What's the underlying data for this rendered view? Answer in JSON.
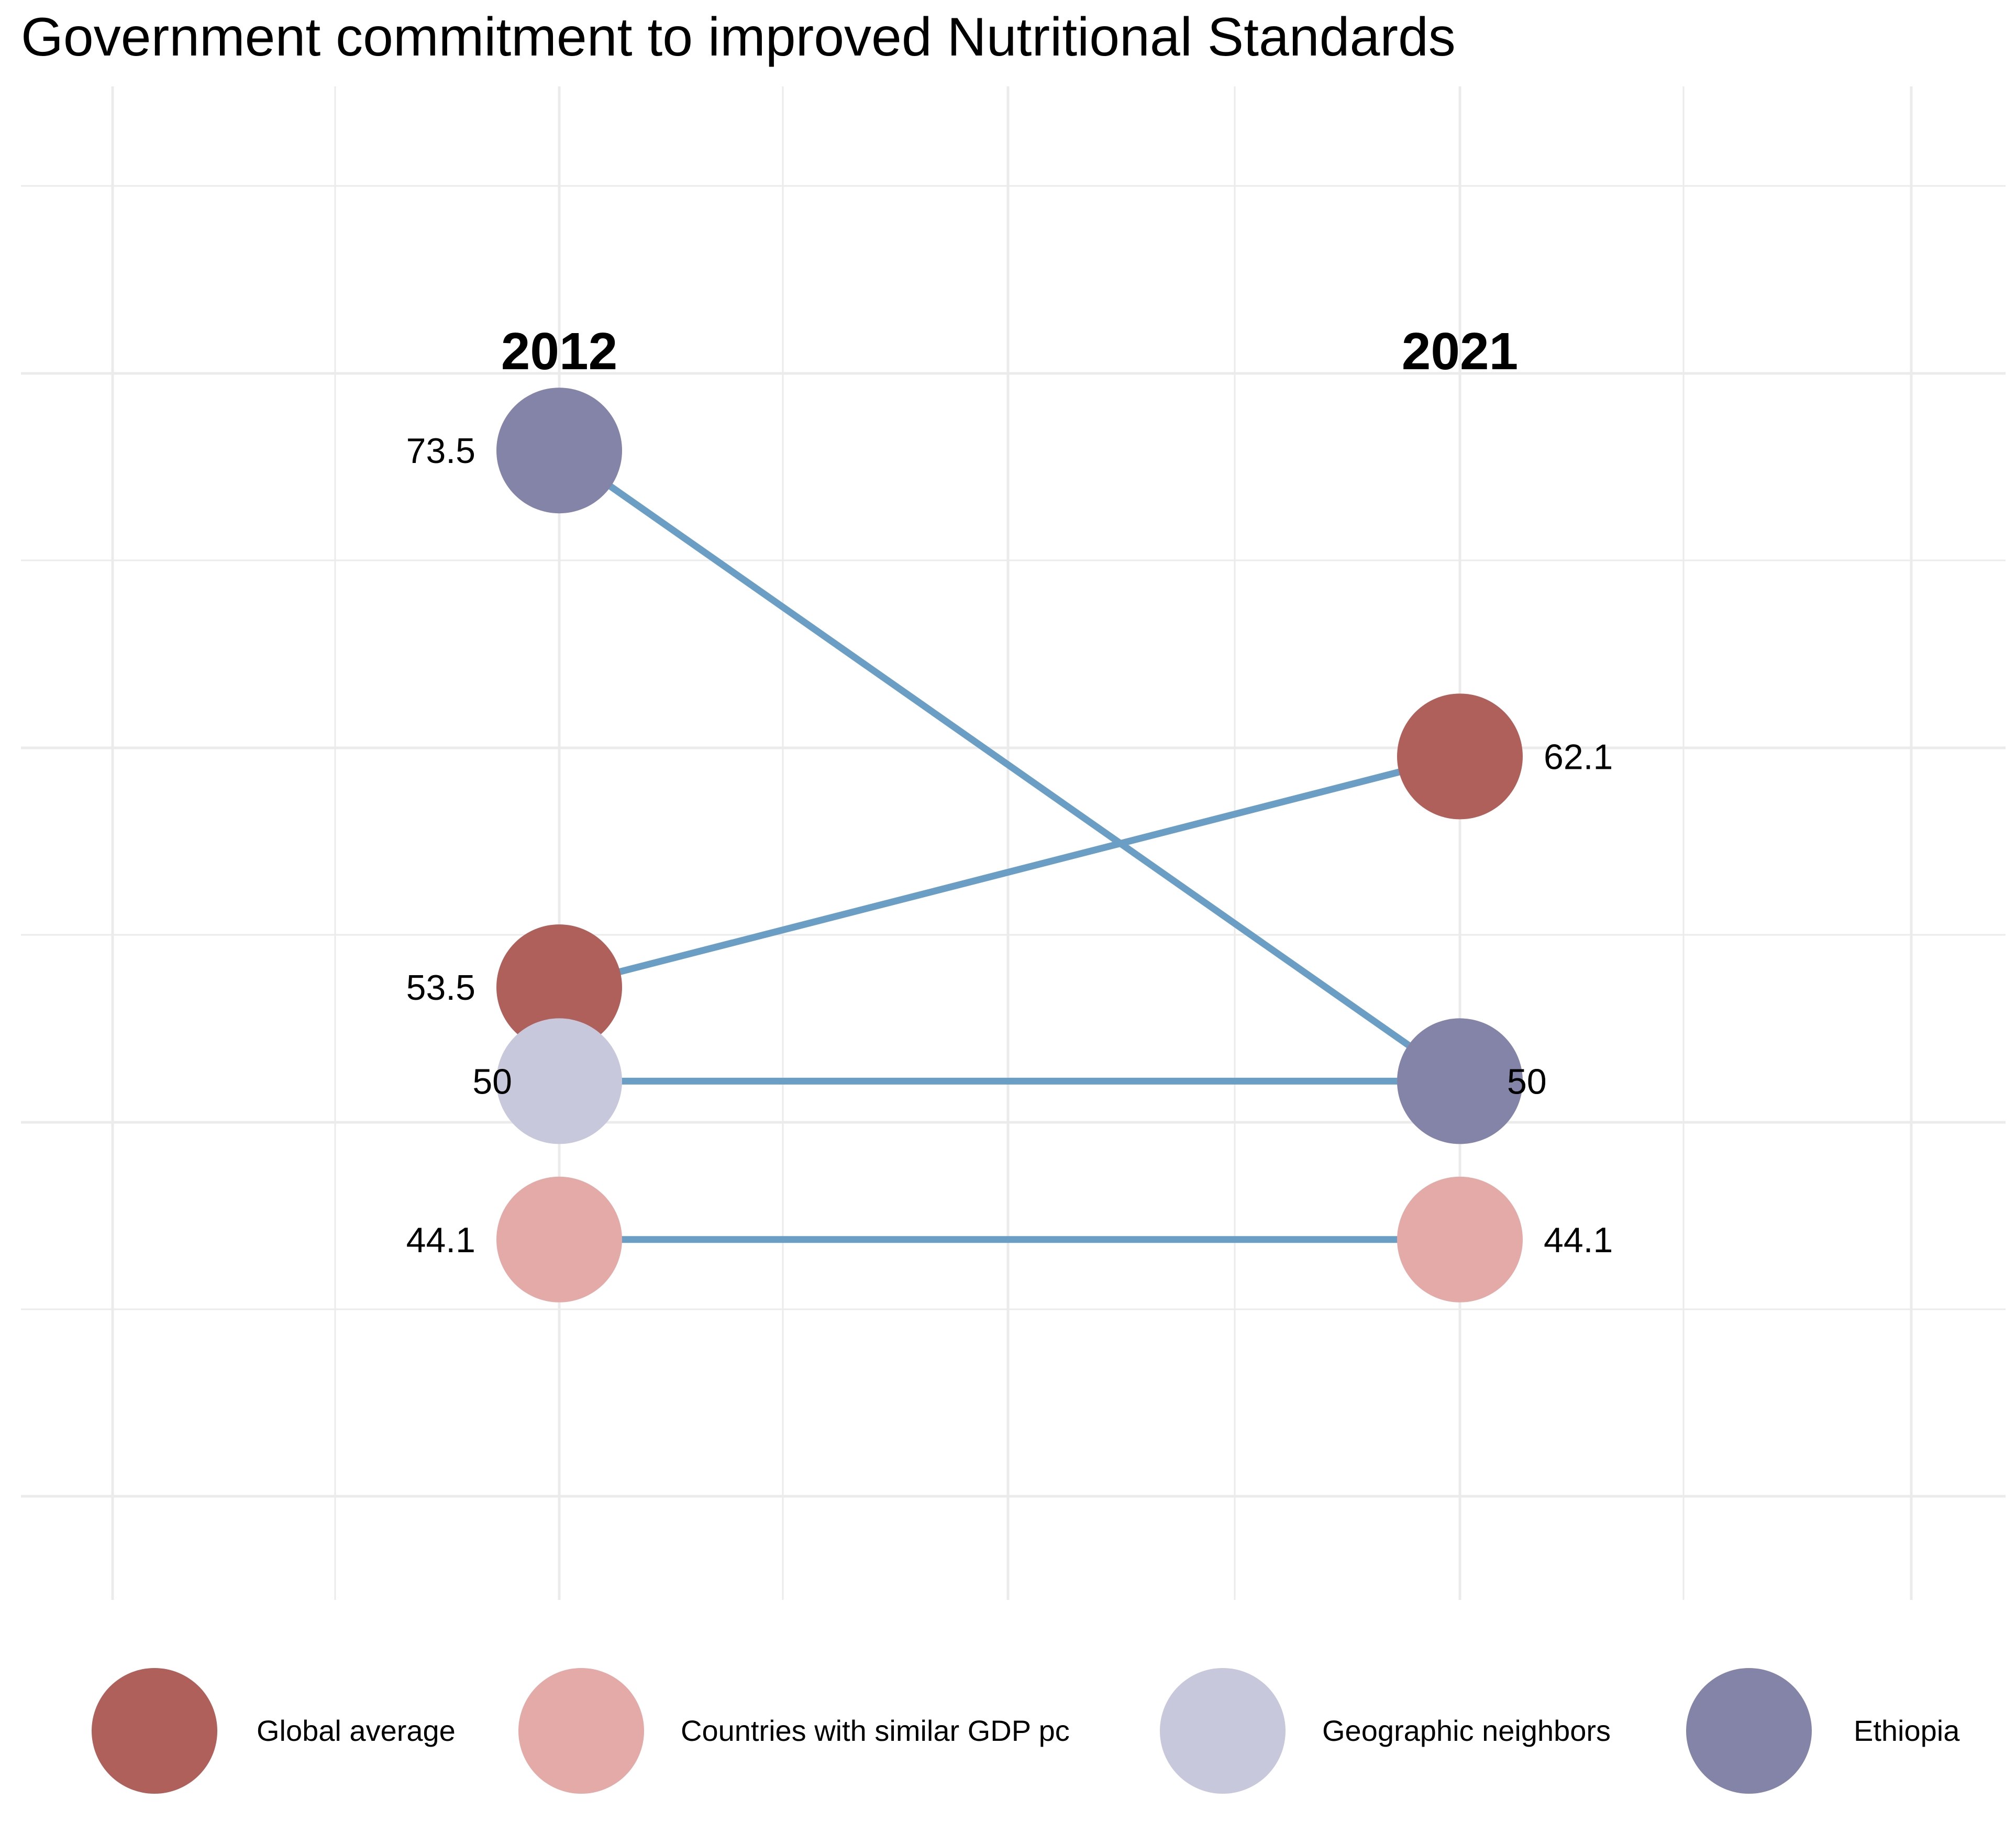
{
  "chart_data": {
    "type": "slope",
    "title": "Government commitment to improved Nutritional Standards",
    "categories": [
      "2012",
      "2021"
    ],
    "series": [
      {
        "name": "Global average",
        "values": [
          53.5,
          62.1
        ],
        "labels": [
          "53.5",
          "62.1"
        ],
        "color": "#b0605a"
      },
      {
        "name": "Countries with similar GDP pc",
        "values": [
          44.1,
          44.1
        ],
        "labels": [
          "44.1",
          "44.1"
        ],
        "color": "#e3aaa7"
      },
      {
        "name": "Geographic neighbors",
        "values": [
          50,
          50
        ],
        "labels": [
          "50",
          "50"
        ],
        "color": "#c8c8dc"
      },
      {
        "name": "Ethiopia",
        "values": [
          73.5,
          50
        ],
        "labels": [
          "73.5",
          "50"
        ],
        "color": "#8484a8"
      }
    ],
    "line_color": "#6b9ec5",
    "ylim": [
      41.5,
      83.3
    ],
    "grid": true,
    "legend_position": "bottom"
  }
}
